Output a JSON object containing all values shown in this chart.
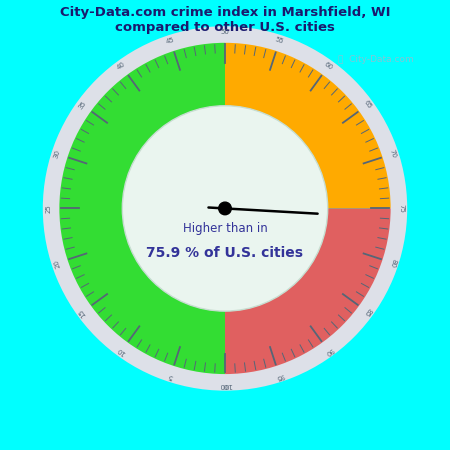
{
  "title": "City-Data.com crime index in Marshfield, WI\ncompared to other U.S. cities",
  "title_color": "#1a1a6e",
  "background_color": "#00ffff",
  "gauge_bg_color": "#eaf5ef",
  "value": 75.9,
  "label_higher": "Higher than in",
  "label_percent": "75.9 % of U.S. cities",
  "green_color": "#33dd33",
  "orange_color": "#ffaa00",
  "red_color": "#e06060",
  "outer_ring_color": "#dde0e8",
  "needle_color": "#000000",
  "text_color": "#333399",
  "watermark_color": "#99bbcc",
  "tick_color": "#556677",
  "label_color": "#556677"
}
